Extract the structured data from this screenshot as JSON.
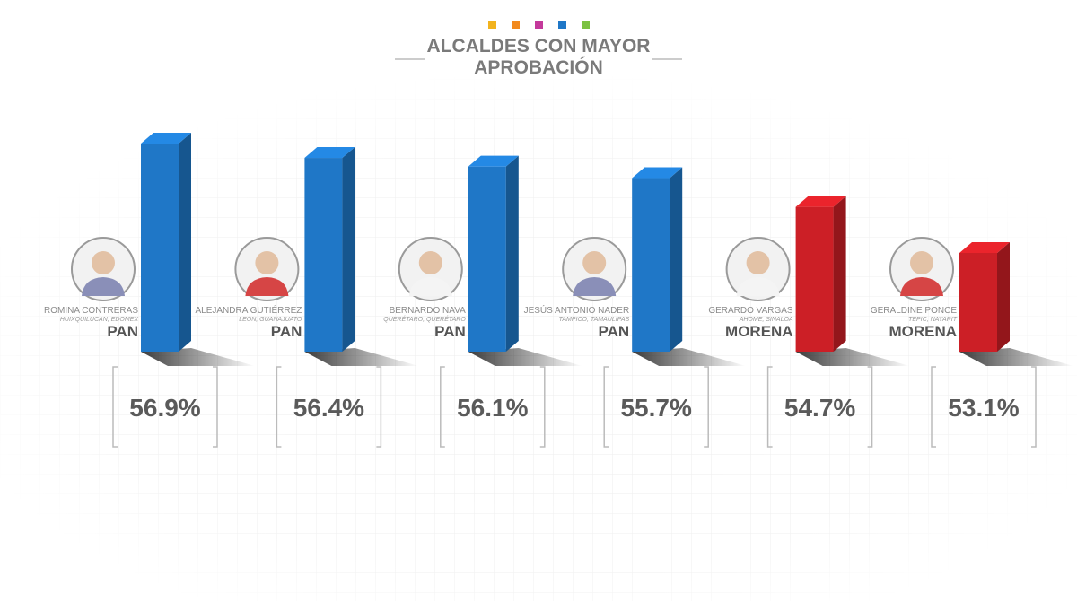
{
  "chart_data": {
    "type": "bar",
    "title": "ALCALDES CON MAYOR APROBACIÓN",
    "categories": [
      "ROMINA CONTRERAS",
      "ALEJANDRA GUTIÉRREZ",
      "BERNARDO NAVA",
      "JESÚS ANTONIO NADER",
      "GERARDO VARGAS",
      "GERALDINE PONCE"
    ],
    "locations": [
      "HUIXQUILUCAN, EDOMEX",
      "LEÓN, GUANAJUATO",
      "QUERÉTARO, QUERÉTARO",
      "TAMPICO, TAMAULIPAS",
      "AHOME, SINALOA",
      "TEPIC, NAYARIT"
    ],
    "parties": [
      "PAN",
      "PAN",
      "PAN",
      "PAN",
      "MORENA",
      "MORENA"
    ],
    "values": [
      56.9,
      56.4,
      56.1,
      55.7,
      54.7,
      53.1
    ],
    "value_labels": [
      "56.9%",
      "56.4%",
      "56.1%",
      "55.7%",
      "54.7%",
      "53.1%"
    ],
    "colors": [
      "#1f77c7",
      "#1f77c7",
      "#1f77c7",
      "#1f77c7",
      "#cc1f26",
      "#cc1f26"
    ]
  }
}
